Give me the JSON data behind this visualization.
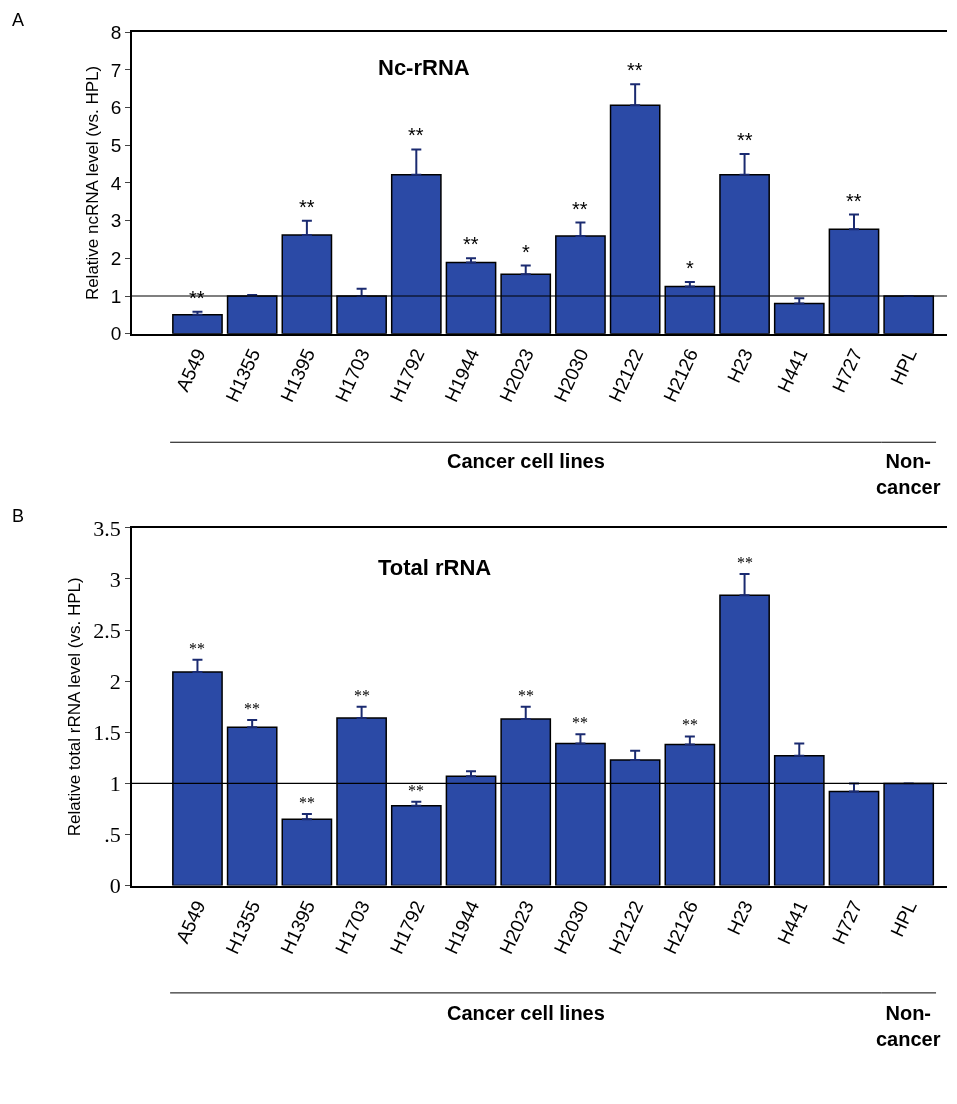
{
  "chart_data": [
    {
      "type": "bar",
      "title": "Nc-rRNA",
      "ylabel": "Relative ncRNA level (vs. HPL)",
      "categories": [
        "A549",
        "H1355",
        "H1395",
        "H1703",
        "H1792",
        "H1944",
        "H2023",
        "H2030",
        "H2122",
        "H2126",
        "H23",
        "H441",
        "H727",
        "HPL"
      ],
      "values": [
        0.5,
        1.0,
        2.62,
        1.0,
        4.22,
        1.89,
        1.58,
        2.59,
        6.06,
        1.25,
        4.22,
        0.8,
        2.77,
        1.0
      ],
      "errors": [
        [
          0.5,
          0.58
        ],
        [
          1.0,
          1.03
        ],
        [
          2.62,
          3.0
        ],
        [
          1.0,
          1.19
        ],
        [
          4.22,
          4.89
        ],
        [
          1.89,
          2.0
        ],
        [
          1.58,
          1.81
        ],
        [
          2.59,
          2.95
        ],
        [
          6.06,
          6.62
        ],
        [
          1.25,
          1.37
        ],
        [
          4.22,
          4.77
        ],
        [
          0.8,
          0.94
        ],
        [
          2.77,
          3.16
        ],
        null
      ],
      "color": "#2b4aa6",
      "ylim": [
        0,
        8
      ],
      "yticks": [
        0,
        1,
        2,
        3,
        4,
        5,
        6,
        7,
        8
      ],
      "ref_lines": [
        {
          "axis": "y",
          "value": 1,
          "label": null
        }
      ],
      "annotations": [
        "A",
        "Cancer cell lines",
        "Non-\ncancer",
        {
          "text": "**",
          "x": "A549",
          "y": 0.58
        },
        {
          "text": "**",
          "x": "H1395",
          "y": 3.0
        },
        {
          "text": "**",
          "x": "H1792",
          "y": 4.89
        },
        {
          "text": "**",
          "x": "H1944",
          "y": 2.0
        },
        {
          "text": "*",
          "x": "H2023",
          "y": 1.81
        },
        {
          "text": "**",
          "x": "H2030",
          "y": 2.95
        },
        {
          "text": "**",
          "x": "H2122",
          "y": 6.62
        },
        {
          "text": "*",
          "x": "H2126",
          "y": 1.37
        },
        {
          "text": "**",
          "x": "H23",
          "y": 4.77
        },
        {
          "text": "**",
          "x": "H727",
          "y": 3.16
        }
      ]
    },
    {
      "type": "bar",
      "title": "Total rRNA",
      "ylabel": "Relative total rRNA level (vs. HPL)",
      "categories": [
        "A549",
        "H1355",
        "H1395",
        "H1703",
        "H1792",
        "H1944",
        "H2023",
        "H2030",
        "H2122",
        "H2126",
        "H23",
        "H441",
        "H727",
        "HPL"
      ],
      "values": [
        2.09,
        1.55,
        0.65,
        1.64,
        0.78,
        1.07,
        1.63,
        1.39,
        1.23,
        1.38,
        2.84,
        1.27,
        0.92,
        1.0
      ],
      "errors": [
        [
          2.09,
          2.21
        ],
        [
          1.55,
          1.62
        ],
        [
          0.65,
          0.7
        ],
        [
          1.64,
          1.75
        ],
        [
          0.78,
          0.82
        ],
        [
          1.07,
          1.12
        ],
        [
          1.63,
          1.75
        ],
        [
          1.39,
          1.48
        ],
        [
          1.23,
          1.32
        ],
        [
          1.38,
          1.46
        ],
        [
          2.84,
          3.05
        ],
        [
          1.27,
          1.39
        ],
        [
          0.92,
          1.0
        ],
        null
      ],
      "color": "#2b4aa6",
      "ylim": [
        0,
        3.5
      ],
      "yticks": [
        0,
        {
          "value": 0.5,
          "label": ".5"
        },
        1,
        1.5,
        2,
        2.5,
        3,
        3.5
      ],
      "ref_lines": [
        {
          "axis": "y",
          "value": 1,
          "label": null
        }
      ],
      "annotations": [
        "B",
        "Cancer cell lines",
        "Non-\ncancer",
        {
          "text": "**",
          "x": "A549",
          "y": 2.21
        },
        {
          "text": "**",
          "x": "H1355",
          "y": 1.62
        },
        {
          "text": "**",
          "x": "H1395",
          "y": 0.7
        },
        {
          "text": "**",
          "x": "H1703",
          "y": 1.75
        },
        {
          "text": "**",
          "x": "H1792",
          "y": 0.82
        },
        {
          "text": "**",
          "x": "H2023",
          "y": 1.75
        },
        {
          "text": "**",
          "x": "H2030",
          "y": 1.48
        },
        {
          "text": "**",
          "x": "H2126",
          "y": 1.46
        },
        {
          "text": "**",
          "x": "H23",
          "y": 3.05
        }
      ]
    }
  ]
}
